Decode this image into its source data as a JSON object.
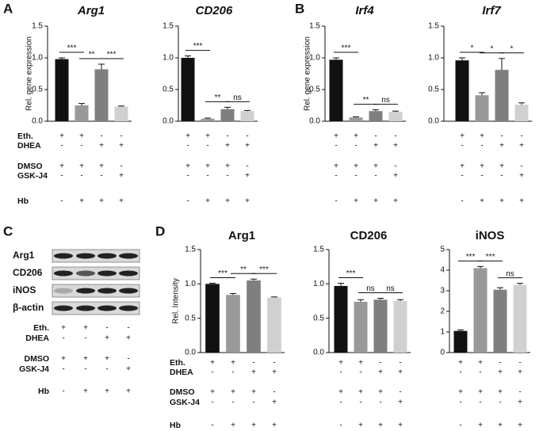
{
  "panels": [
    "A",
    "B",
    "C",
    "D"
  ],
  "treatments": {
    "rows": [
      {
        "label": "Eth.",
        "signs": [
          "+",
          "+",
          "-",
          "-"
        ]
      },
      {
        "label": "DHEA",
        "signs": [
          "-",
          "-",
          "+",
          "+"
        ]
      },
      {
        "label": "DMSO",
        "signs": [
          "+",
          "+",
          "+",
          "-"
        ]
      },
      {
        "label": "GSK-J4",
        "signs": [
          "-",
          "-",
          "-",
          "+"
        ]
      },
      {
        "label": "Hb",
        "signs": [
          "-",
          "+",
          "+",
          "+"
        ]
      }
    ]
  },
  "blot": {
    "labels": [
      "Arg1",
      "CD206",
      "iNOS",
      "β-actin"
    ]
  },
  "chart_data": [
    {
      "type": "bar",
      "title": "Arg1",
      "y_label": "Rel. gene expression",
      "categories": [
        null,
        null,
        null,
        null
      ],
      "values": [
        0.98,
        0.25,
        0.82,
        0.23
      ],
      "errors": [
        0.02,
        0.03,
        0.08,
        0.01
      ],
      "colors": [
        "#111111",
        "#999999",
        "#7f7f7f",
        "#d0d0d0"
      ],
      "significance": [
        "***",
        "**",
        "***"
      ],
      "ylim": [
        0,
        1.5
      ],
      "yticks": [
        {
          "value": 0,
          "label": "0.0"
        },
        {
          "value": 0.5,
          "label": "0.5"
        },
        {
          "value": 1,
          "label": "1.0"
        },
        {
          "value": 1.5,
          "label": "1.5"
        }
      ]
    },
    {
      "type": "bar",
      "title": "CD206",
      "categories": [
        null,
        null,
        null,
        null
      ],
      "values": [
        1.0,
        0.04,
        0.19,
        0.16
      ],
      "errors": [
        0.03,
        0.01,
        0.03,
        0.01
      ],
      "colors": [
        "#111111",
        "#999999",
        "#7f7f7f",
        "#d0d0d0"
      ],
      "significance": [
        "***",
        "**",
        "ns"
      ],
      "ylim": [
        0,
        1.5
      ],
      "yticks": [
        {
          "value": 0,
          "label": "0.0"
        },
        {
          "value": 0.5,
          "label": "0.5"
        },
        {
          "value": 1,
          "label": "1.0"
        },
        {
          "value": 1.5,
          "label": "1.5"
        }
      ]
    },
    {
      "type": "bar",
      "title": "Irf4",
      "y_label": "Rel. gene expression",
      "categories": [
        null,
        null,
        null,
        null
      ],
      "values": [
        0.97,
        0.06,
        0.16,
        0.15
      ],
      "errors": [
        0.03,
        0.01,
        0.02,
        0.01
      ],
      "colors": [
        "#111111",
        "#999999",
        "#7f7f7f",
        "#d0d0d0"
      ],
      "significance": [
        "***",
        "**",
        "ns"
      ],
      "ylim": [
        0,
        1.5
      ],
      "yticks": [
        {
          "value": 0,
          "label": "0.0"
        },
        {
          "value": 0.5,
          "label": "0.5"
        },
        {
          "value": 1,
          "label": "1.0"
        },
        {
          "value": 1.5,
          "label": "1.5"
        }
      ]
    },
    {
      "type": "bar",
      "title": "Irf7",
      "categories": [
        null,
        null,
        null,
        null
      ],
      "values": [
        0.96,
        0.41,
        0.81,
        0.26
      ],
      "errors": [
        0.04,
        0.04,
        0.18,
        0.03
      ],
      "colors": [
        "#111111",
        "#999999",
        "#7f7f7f",
        "#d0d0d0"
      ],
      "significance": [
        "*",
        "*",
        "*"
      ],
      "ylim": [
        0,
        1.5
      ],
      "yticks": [
        {
          "value": 0,
          "label": "0.0"
        },
        {
          "value": 0.5,
          "label": "0.5"
        },
        {
          "value": 1,
          "label": "1.0"
        },
        {
          "value": 1.5,
          "label": "1.5"
        }
      ]
    },
    {
      "type": "bar",
      "title": "Arg1",
      "y_label": "Rel. Intensity",
      "categories": [
        null,
        null,
        null,
        null
      ],
      "values": [
        1.0,
        0.84,
        1.05,
        0.8
      ],
      "errors": [
        0.01,
        0.02,
        0.02,
        0.01
      ],
      "colors": [
        "#111111",
        "#999999",
        "#7f7f7f",
        "#d0d0d0"
      ],
      "significance": [
        "***",
        "**",
        "***"
      ],
      "ylim": [
        0,
        1.5
      ],
      "yticks": [
        {
          "value": 0,
          "label": "0.0"
        },
        {
          "value": 0.5,
          "label": "0.5"
        },
        {
          "value": 1,
          "label": "1.0"
        },
        {
          "value": 1.5,
          "label": "1.5"
        }
      ]
    },
    {
      "type": "bar",
      "title": "CD206",
      "categories": [
        null,
        null,
        null,
        null
      ],
      "values": [
        0.97,
        0.74,
        0.77,
        0.75
      ],
      "errors": [
        0.04,
        0.03,
        0.02,
        0.02
      ],
      "colors": [
        "#111111",
        "#999999",
        "#7f7f7f",
        "#d0d0d0"
      ],
      "significance": [
        "***",
        "ns",
        "ns"
      ],
      "ylim": [
        0,
        1.5
      ],
      "yticks": [
        {
          "value": 0,
          "label": "0.0"
        },
        {
          "value": 0.5,
          "label": "0.5"
        },
        {
          "value": 1,
          "label": "1.0"
        },
        {
          "value": 1.5,
          "label": "1.5"
        }
      ]
    },
    {
      "type": "bar",
      "title": "iNOS",
      "categories": [
        null,
        null,
        null,
        null
      ],
      "values": [
        1.05,
        4.1,
        3.05,
        3.28
      ],
      "errors": [
        0.05,
        0.08,
        0.1,
        0.08
      ],
      "colors": [
        "#111111",
        "#999999",
        "#7f7f7f",
        "#d0d0d0"
      ],
      "significance": [
        "***",
        "***",
        "ns"
      ],
      "ylim": [
        0,
        5
      ],
      "yticks": [
        0,
        1,
        2,
        3,
        4,
        5
      ]
    }
  ]
}
